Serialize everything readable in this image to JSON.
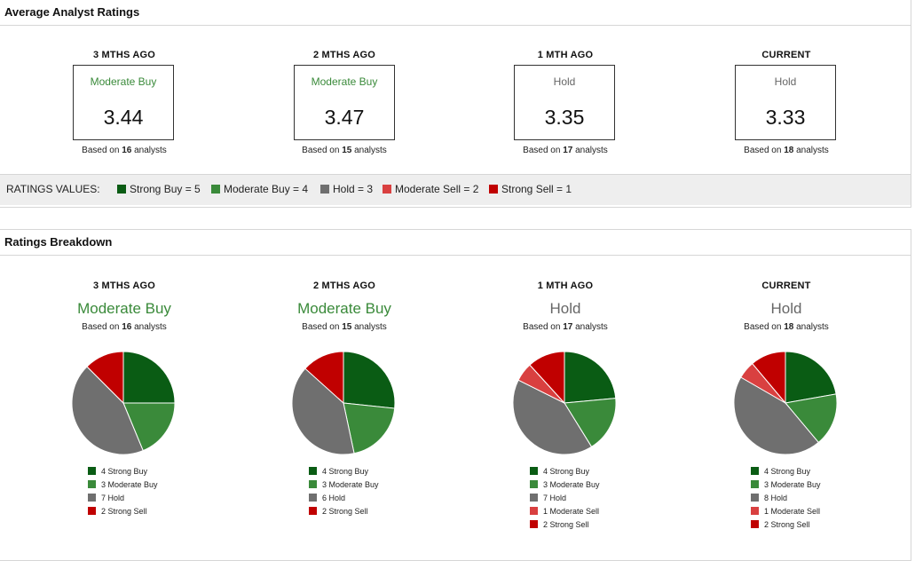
{
  "colors": {
    "strong_buy": "#0a5c14",
    "moderate_buy": "#3a8a3a",
    "hold": "#6f6f6f",
    "moderate_sell": "#d94040",
    "strong_sell": "#c00000",
    "green_text": "#3a8a3a",
    "gray_text": "#666666"
  },
  "avg": {
    "title": "Average Analyst Ratings",
    "cols": [
      {
        "period": "3 MTHS AGO",
        "label": "Moderate Buy",
        "value": "3.44",
        "based_pre": "Based on",
        "count": "16",
        "based_post": "analysts"
      },
      {
        "period": "2 MTHS AGO",
        "label": "Moderate Buy",
        "value": "3.47",
        "based_pre": "Based on",
        "count": "15",
        "based_post": "analysts"
      },
      {
        "period": "1 MTH AGO",
        "label": "Hold",
        "value": "3.35",
        "based_pre": "Based on",
        "count": "17",
        "based_post": "analysts"
      },
      {
        "period": "CURRENT",
        "label": "Hold",
        "value": "3.33",
        "based_pre": "Based on",
        "count": "18",
        "based_post": "analysts"
      }
    ],
    "ratings_values": {
      "title": "RATINGS VALUES:",
      "items": [
        "Strong Buy = 5",
        "Moderate Buy = 4",
        "Hold = 3",
        "Moderate Sell = 2",
        "Strong Sell = 1"
      ]
    }
  },
  "breakdown": {
    "title": "Ratings Breakdown",
    "cols": [
      {
        "period": "3 MTHS AGO",
        "label": "Moderate Buy",
        "based_pre": "Based on",
        "count": "16",
        "based_post": "analysts",
        "legend": [
          "4 Strong Buy",
          "3 Moderate Buy",
          "7 Hold",
          "2 Strong Sell"
        ]
      },
      {
        "period": "2 MTHS AGO",
        "label": "Moderate Buy",
        "based_pre": "Based on",
        "count": "15",
        "based_post": "analysts",
        "legend": [
          "4 Strong Buy",
          "3 Moderate Buy",
          "6 Hold",
          "2 Strong Sell"
        ]
      },
      {
        "period": "1 MTH AGO",
        "label": "Hold",
        "based_pre": "Based on",
        "count": "17",
        "based_post": "analysts",
        "legend": [
          "4 Strong Buy",
          "3 Moderate Buy",
          "7 Hold",
          "1 Moderate Sell",
          "2 Strong Sell"
        ]
      },
      {
        "period": "CURRENT",
        "label": "Hold",
        "based_pre": "Based on",
        "count": "18",
        "based_post": "analysts",
        "legend": [
          "4 Strong Buy",
          "3 Moderate Buy",
          "8 Hold",
          "1 Moderate Sell",
          "2 Strong Sell"
        ]
      }
    ]
  },
  "chart_data": [
    {
      "type": "pie",
      "categories": [
        "Strong Buy",
        "Moderate Buy",
        "Hold",
        "Moderate Sell",
        "Strong Sell"
      ],
      "values": [
        4,
        3,
        7,
        0,
        2
      ]
    },
    {
      "type": "pie",
      "categories": [
        "Strong Buy",
        "Moderate Buy",
        "Hold",
        "Moderate Sell",
        "Strong Sell"
      ],
      "values": [
        4,
        3,
        6,
        0,
        2
      ]
    },
    {
      "type": "pie",
      "categories": [
        "Strong Buy",
        "Moderate Buy",
        "Hold",
        "Moderate Sell",
        "Strong Sell"
      ],
      "values": [
        4,
        3,
        7,
        1,
        2
      ]
    },
    {
      "type": "pie",
      "categories": [
        "Strong Buy",
        "Moderate Buy",
        "Hold",
        "Moderate Sell",
        "Strong Sell"
      ],
      "values": [
        4,
        3,
        8,
        1,
        2
      ]
    }
  ]
}
